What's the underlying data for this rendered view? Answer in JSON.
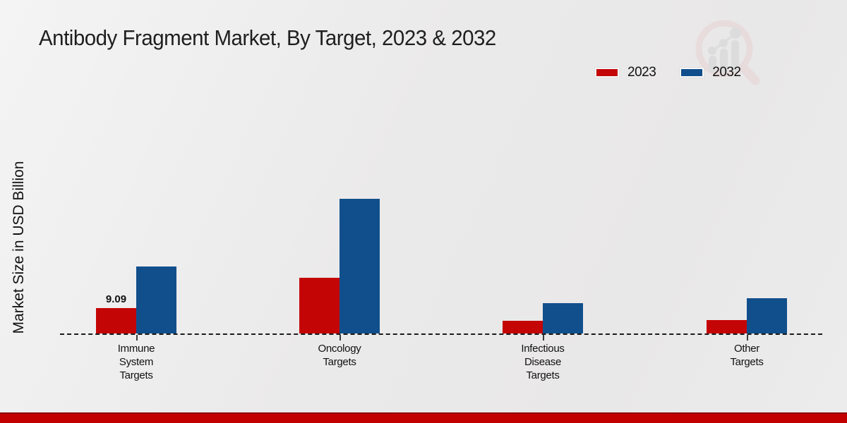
{
  "chart_data": {
    "type": "bar",
    "title": "Antibody Fragment Market, By Target, 2023 & 2032",
    "ylabel": "Market Size in USD Billion",
    "xlabel": "",
    "categories": [
      "Immune System Targets",
      "Oncology Targets",
      "Infectious Disease Targets",
      "Other Targets"
    ],
    "category_label_lines": [
      [
        "Immune",
        "System",
        "Targets"
      ],
      [
        "Oncology",
        "Targets"
      ],
      [
        "Infectious",
        "Disease",
        "Targets"
      ],
      [
        "Other",
        "Targets"
      ]
    ],
    "series": [
      {
        "name": "2023",
        "color": "#c40506",
        "values": [
          9.09,
          19.9,
          4.5,
          4.8
        ]
      },
      {
        "name": "2032",
        "color": "#114f8c",
        "values": [
          24.0,
          48.3,
          10.9,
          12.6
        ]
      }
    ],
    "data_labels": [
      {
        "series_index": 0,
        "category_index": 0,
        "text": "9.09"
      }
    ],
    "ylim": [
      0,
      50
    ],
    "grid": false,
    "axis_style": "dashed-baseline",
    "legend_position": "top-right"
  },
  "brand": {
    "footer_stripe_color": "#c20000",
    "watermark": "magnifier-bar-chart-logo"
  }
}
